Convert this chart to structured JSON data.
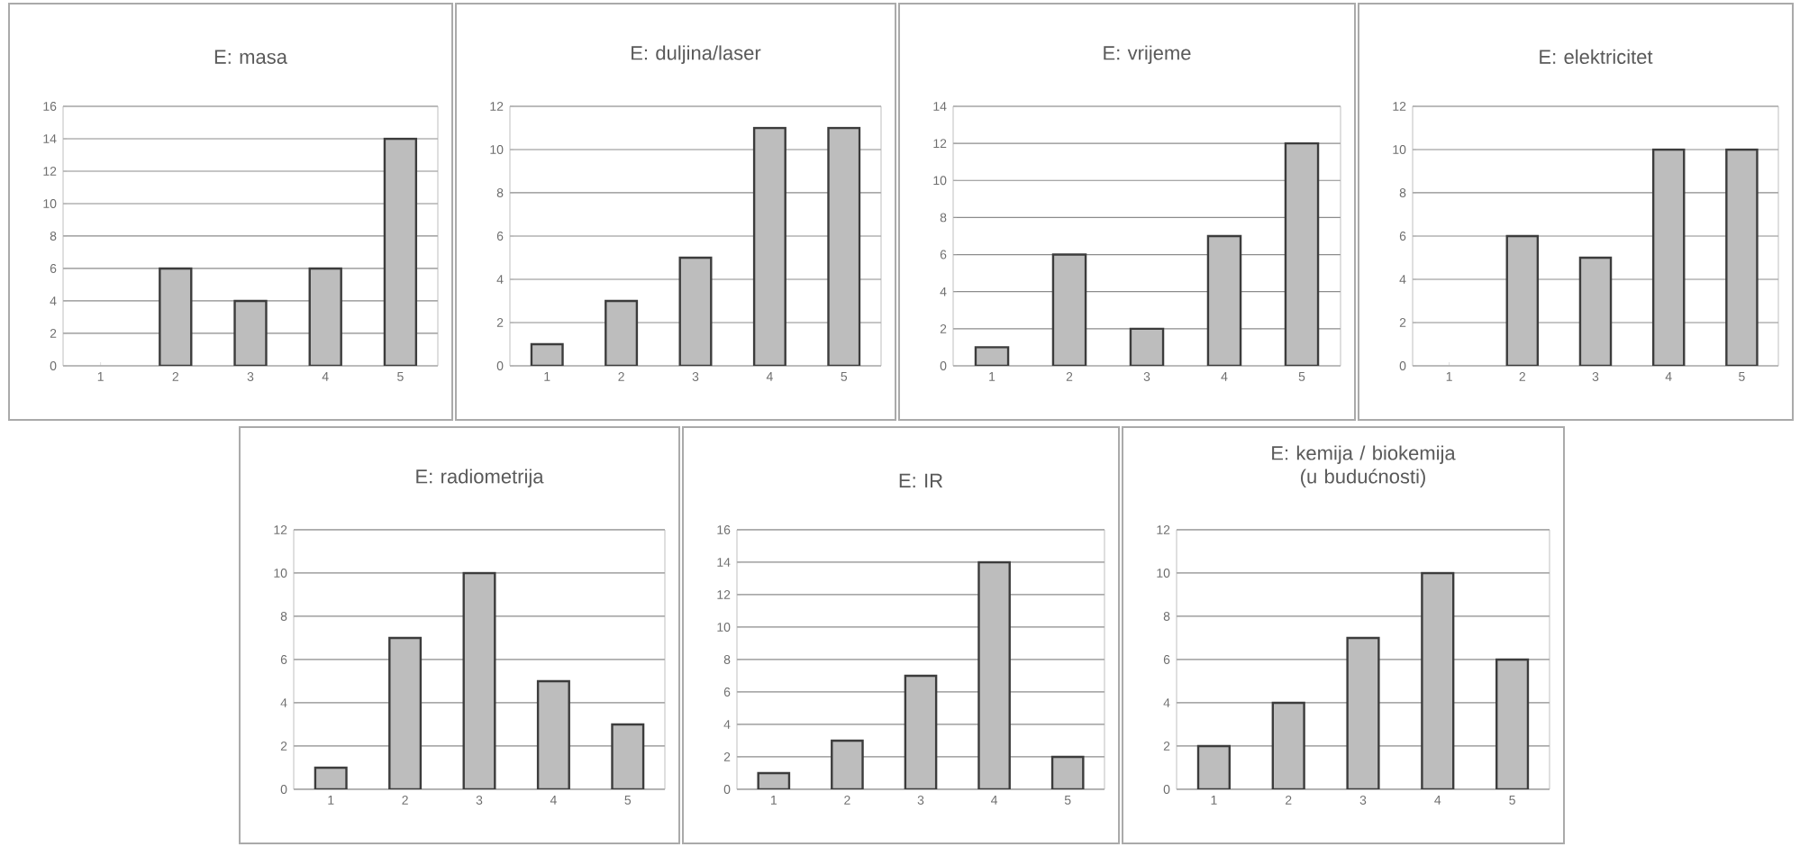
{
  "chart_data": [
    {
      "type": "bar",
      "title": "E: masa",
      "categories": [
        "1",
        "2",
        "3",
        "4",
        "5"
      ],
      "values": [
        null,
        6,
        4,
        6,
        14
      ],
      "color": "#bdbdbd",
      "ylim": [
        0,
        16
      ],
      "yticks": [
        0,
        2,
        4,
        6,
        8,
        10,
        12,
        14,
        16
      ],
      "grid": "y"
    },
    {
      "type": "bar",
      "title": "E: duljina/laser",
      "categories": [
        "1",
        "2",
        "3",
        "4",
        "5"
      ],
      "values": [
        1,
        3,
        5,
        11,
        11
      ],
      "color": "#bdbdbd",
      "ylim": [
        0,
        12
      ],
      "yticks": [
        0,
        2,
        4,
        6,
        8,
        10,
        12
      ],
      "grid": "y"
    },
    {
      "type": "bar",
      "title": "E: vrijeme",
      "categories": [
        "1",
        "2",
        "3",
        "4",
        "5"
      ],
      "values": [
        1,
        6,
        2,
        7,
        12
      ],
      "color": "#bdbdbd",
      "ylim": [
        0,
        14
      ],
      "yticks": [
        0,
        2,
        4,
        6,
        8,
        10,
        12,
        14
      ],
      "grid": "y"
    },
    {
      "type": "bar",
      "title": "E: elektricitet",
      "categories": [
        "1",
        "2",
        "3",
        "4",
        "5"
      ],
      "values": [
        null,
        6,
        5,
        10,
        10
      ],
      "color": "#bdbdbd",
      "ylim": [
        0,
        12
      ],
      "yticks": [
        0,
        2,
        4,
        6,
        8,
        10,
        12
      ],
      "grid": "y"
    },
    {
      "type": "bar",
      "title": "E: radiometrija",
      "categories": [
        "1",
        "2",
        "3",
        "4",
        "5"
      ],
      "values": [
        1,
        7,
        10,
        5,
        3
      ],
      "color": "#bdbdbd",
      "ylim": [
        0,
        12
      ],
      "yticks": [
        0,
        2,
        4,
        6,
        8,
        10,
        12
      ],
      "grid": "y"
    },
    {
      "type": "bar",
      "title": "E: IR",
      "categories": [
        "1",
        "2",
        "3",
        "4",
        "5"
      ],
      "values": [
        1,
        3,
        7,
        14,
        2
      ],
      "color": "#bdbdbd",
      "ylim": [
        0,
        16
      ],
      "yticks": [
        0,
        2,
        4,
        6,
        8,
        10,
        12,
        14,
        16
      ],
      "grid": "y"
    },
    {
      "type": "bar",
      "title": "E: kemija / biokemija (u budućnosti)",
      "categories": [
        "1",
        "2",
        "3",
        "4",
        "5"
      ],
      "values": [
        2,
        4,
        7,
        10,
        6
      ],
      "color": "#bdbdbd",
      "ylim": [
        0,
        12
      ],
      "yticks": [
        0,
        2,
        4,
        6,
        8,
        10,
        12
      ],
      "grid": "y"
    }
  ]
}
